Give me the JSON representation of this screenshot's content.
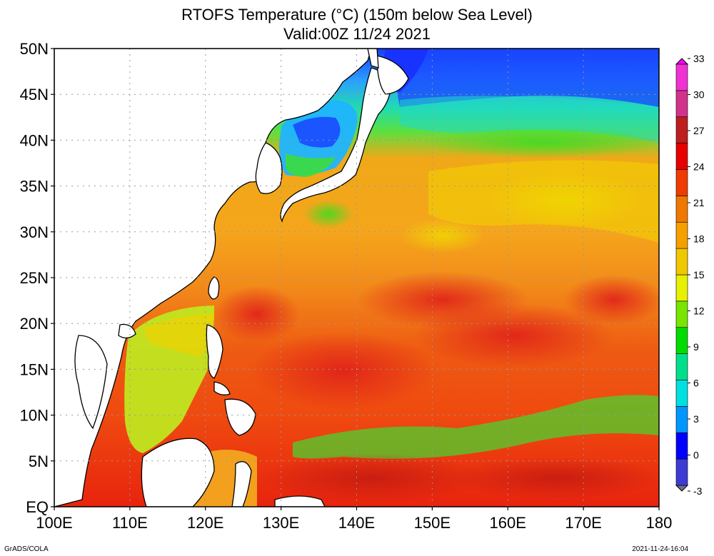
{
  "title": "RTOFS Temperature (°C) (150m below Sea Level)",
  "subtitle": "Valid:00Z 11/24 2021",
  "credit": "GrADS/COLA",
  "timestamp": "2021-11-24-16:04",
  "map": {
    "lon_range": [
      100,
      180
    ],
    "lat_range": [
      0,
      50
    ],
    "lon_ticks": [
      "100E",
      "110E",
      "120E",
      "130E",
      "140E",
      "150E",
      "160E",
      "170E",
      "180"
    ],
    "lat_ticks": [
      "EQ",
      "5N",
      "10N",
      "15N",
      "20N",
      "25N",
      "30N",
      "35N",
      "40N",
      "45N",
      "50N"
    ],
    "grid": true
  },
  "colorbar": {
    "labels": [
      "-3",
      "0",
      "3",
      "6",
      "9",
      "12",
      "15",
      "18",
      "21",
      "24",
      "27",
      "30",
      "33"
    ],
    "colors": [
      "#6e6e8c",
      "#3c3cd2",
      "#0000ff",
      "#0096ff",
      "#00e0e0",
      "#00e08c",
      "#00dc00",
      "#78e600",
      "#e6f000",
      "#f0c800",
      "#f5a000",
      "#f07800",
      "#f03c00",
      "#e60000",
      "#be1e1e",
      "#d2328c",
      "#f032d2",
      "#ff00ff"
    ]
  }
}
